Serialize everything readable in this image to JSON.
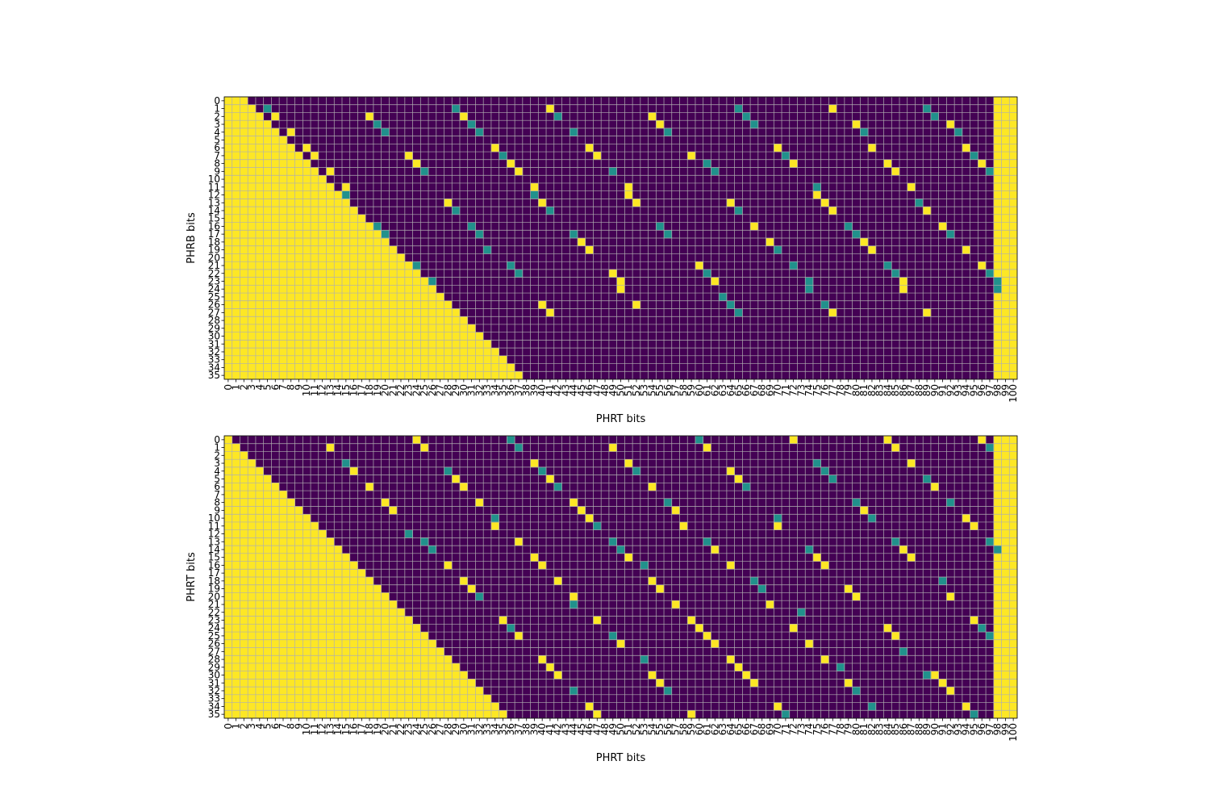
{
  "colors": {
    "high": "#fde725",
    "mid": "#21918c",
    "low": "#440154",
    "grid": "#b0b0b0"
  },
  "chart_data": [
    {
      "type": "heatmap",
      "xlabel": "PHRT bits",
      "ylabel": "PHRB bits",
      "n_cols": 101,
      "n_rows": 36,
      "x_ticks": [
        "0",
        "1",
        "2",
        "3",
        "4",
        "5",
        "6",
        "7",
        "8",
        "9",
        "10",
        "11",
        "12",
        "13",
        "14",
        "15",
        "16",
        "17",
        "18",
        "19",
        "20",
        "21",
        "22",
        "23",
        "24",
        "25",
        "26",
        "27",
        "28",
        "29",
        "30",
        "31",
        "32",
        "33",
        "34",
        "35",
        "36",
        "37",
        "38",
        "39",
        "40",
        "41",
        "42",
        "43",
        "44",
        "45",
        "46",
        "47",
        "48",
        "49",
        "50",
        "51",
        "52",
        "53",
        "54",
        "55",
        "56",
        "57",
        "58",
        "59",
        "60",
        "61",
        "62",
        "63",
        "64",
        "65",
        "66",
        "67",
        "68",
        "69",
        "70",
        "71",
        "72",
        "73",
        "74",
        "75",
        "76",
        "77",
        "78",
        "79",
        "80",
        "81",
        "82",
        "83",
        "84",
        "85",
        "86",
        "87",
        "88",
        "89",
        "90",
        "91",
        "92",
        "93",
        "94",
        "95",
        "96",
        "97",
        "98",
        "99",
        "100"
      ],
      "y_ticks": [
        "0",
        "1",
        "2",
        "3",
        "4",
        "5",
        "6",
        "7",
        "8",
        "9",
        "10",
        "11",
        "12",
        "13",
        "14",
        "15",
        "16",
        "17",
        "18",
        "19",
        "20",
        "21",
        "22",
        "23",
        "24",
        "25",
        "26",
        "27",
        "28",
        "29",
        "30",
        "31",
        "32",
        "33",
        "34",
        "35"
      ],
      "values_legend": {
        "low": 0,
        "mid": 0.5,
        "high": 1
      },
      "triangle_cols_end": [
        3,
        4,
        5,
        6,
        7,
        8,
        9,
        10,
        11,
        12,
        13,
        14,
        15,
        16,
        17,
        18,
        19,
        20,
        21,
        22,
        23,
        24,
        25,
        26,
        27,
        28,
        29,
        30,
        31,
        32,
        33,
        34,
        35,
        36,
        37,
        38
      ],
      "full_high_cols": [
        98,
        99,
        100
      ],
      "high_cells": [
        [
          1,
          41
        ],
        [
          1,
          77
        ],
        [
          2,
          6
        ],
        [
          2,
          18
        ],
        [
          2,
          30
        ],
        [
          2,
          54
        ],
        [
          3,
          55
        ],
        [
          3,
          80
        ],
        [
          3,
          92
        ],
        [
          4,
          8
        ],
        [
          6,
          10
        ],
        [
          6,
          34
        ],
        [
          6,
          46
        ],
        [
          6,
          70
        ],
        [
          6,
          82
        ],
        [
          6,
          94
        ],
        [
          7,
          11
        ],
        [
          7,
          23
        ],
        [
          7,
          47
        ],
        [
          7,
          59
        ],
        [
          8,
          24
        ],
        [
          8,
          36
        ],
        [
          8,
          72
        ],
        [
          8,
          84
        ],
        [
          8,
          96
        ],
        [
          9,
          13
        ],
        [
          9,
          37
        ],
        [
          9,
          85
        ],
        [
          11,
          15
        ],
        [
          11,
          39
        ],
        [
          11,
          51
        ],
        [
          11,
          87
        ],
        [
          12,
          51
        ],
        [
          12,
          75
        ],
        [
          13,
          28
        ],
        [
          13,
          40
        ],
        [
          13,
          52
        ],
        [
          13,
          64
        ],
        [
          13,
          76
        ],
        [
          14,
          77
        ],
        [
          14,
          89
        ],
        [
          16,
          67
        ],
        [
          16,
          91
        ],
        [
          18,
          45
        ],
        [
          18,
          69
        ],
        [
          18,
          81
        ],
        [
          19,
          46
        ],
        [
          19,
          82
        ],
        [
          19,
          94
        ],
        [
          21,
          60
        ],
        [
          21,
          96
        ],
        [
          22,
          49
        ],
        [
          23,
          50
        ],
        [
          23,
          62
        ],
        [
          23,
          86
        ],
        [
          24,
          50
        ],
        [
          24,
          86
        ],
        [
          26,
          40
        ],
        [
          26,
          52
        ],
        [
          27,
          41
        ],
        [
          27,
          77
        ],
        [
          27,
          89
        ]
      ],
      "mid_cells": [
        [
          1,
          5
        ],
        [
          1,
          29
        ],
        [
          1,
          65
        ],
        [
          1,
          89
        ],
        [
          2,
          42
        ],
        [
          2,
          66
        ],
        [
          2,
          90
        ],
        [
          3,
          19
        ],
        [
          3,
          31
        ],
        [
          3,
          67
        ],
        [
          4,
          20
        ],
        [
          4,
          32
        ],
        [
          4,
          44
        ],
        [
          4,
          56
        ],
        [
          4,
          81
        ],
        [
          4,
          93
        ],
        [
          7,
          35
        ],
        [
          7,
          71
        ],
        [
          7,
          95
        ],
        [
          8,
          61
        ],
        [
          9,
          25
        ],
        [
          9,
          49
        ],
        [
          9,
          62
        ],
        [
          9,
          97
        ],
        [
          11,
          75
        ],
        [
          12,
          15
        ],
        [
          12,
          39
        ],
        [
          13,
          88
        ],
        [
          14,
          29
        ],
        [
          14,
          41
        ],
        [
          14,
          65
        ],
        [
          16,
          19
        ],
        [
          16,
          31
        ],
        [
          16,
          55
        ],
        [
          16,
          79
        ],
        [
          17,
          20
        ],
        [
          17,
          32
        ],
        [
          17,
          44
        ],
        [
          17,
          56
        ],
        [
          17,
          80
        ],
        [
          17,
          92
        ],
        [
          19,
          33
        ],
        [
          19,
          70
        ],
        [
          21,
          24
        ],
        [
          21,
          36
        ],
        [
          21,
          72
        ],
        [
          21,
          84
        ],
        [
          22,
          37
        ],
        [
          22,
          61
        ],
        [
          22,
          85
        ],
        [
          22,
          97
        ],
        [
          23,
          26
        ],
        [
          23,
          74
        ],
        [
          23,
          98
        ],
        [
          24,
          74
        ],
        [
          24,
          98
        ],
        [
          25,
          63
        ],
        [
          26,
          64
        ],
        [
          26,
          76
        ],
        [
          27,
          65
        ]
      ]
    },
    {
      "type": "heatmap",
      "xlabel": "PHRT bits",
      "ylabel": "PHRT bits",
      "n_cols": 101,
      "n_rows": 36,
      "x_ticks": [
        "0",
        "1",
        "2",
        "3",
        "4",
        "5",
        "6",
        "7",
        "8",
        "9",
        "10",
        "11",
        "12",
        "13",
        "14",
        "15",
        "16",
        "17",
        "18",
        "19",
        "20",
        "21",
        "22",
        "23",
        "24",
        "25",
        "26",
        "27",
        "28",
        "29",
        "30",
        "31",
        "32",
        "33",
        "34",
        "35",
        "36",
        "37",
        "38",
        "39",
        "40",
        "41",
        "42",
        "43",
        "44",
        "45",
        "46",
        "47",
        "48",
        "49",
        "50",
        "51",
        "52",
        "53",
        "54",
        "55",
        "56",
        "57",
        "58",
        "59",
        "60",
        "61",
        "62",
        "63",
        "64",
        "65",
        "66",
        "67",
        "68",
        "69",
        "70",
        "71",
        "72",
        "73",
        "74",
        "75",
        "76",
        "77",
        "78",
        "79",
        "80",
        "81",
        "82",
        "83",
        "84",
        "85",
        "86",
        "87",
        "88",
        "89",
        "90",
        "91",
        "92",
        "93",
        "94",
        "95",
        "96",
        "97",
        "98",
        "99",
        "100"
      ],
      "y_ticks": [
        "0",
        "1",
        "2",
        "3",
        "4",
        "5",
        "6",
        "7",
        "8",
        "9",
        "10",
        "11",
        "12",
        "13",
        "14",
        "15",
        "16",
        "17",
        "18",
        "19",
        "20",
        "21",
        "22",
        "23",
        "24",
        "25",
        "26",
        "27",
        "28",
        "29",
        "30",
        "31",
        "32",
        "33",
        "34",
        "35"
      ],
      "values_legend": {
        "low": 0,
        "mid": 0.5,
        "high": 1
      },
      "triangle_cols_end": [
        1,
        2,
        3,
        4,
        5,
        6,
        7,
        8,
        9,
        10,
        11,
        12,
        13,
        14,
        15,
        16,
        17,
        18,
        19,
        20,
        21,
        22,
        23,
        24,
        25,
        26,
        27,
        28,
        29,
        30,
        31,
        32,
        33,
        34,
        35,
        36
      ],
      "full_high_cols": [
        98,
        99,
        100
      ],
      "high_cells": [
        [
          0,
          24
        ],
        [
          0,
          72
        ],
        [
          0,
          84
        ],
        [
          0,
          96
        ],
        [
          1,
          13
        ],
        [
          1,
          25
        ],
        [
          1,
          49
        ],
        [
          1,
          61
        ],
        [
          1,
          85
        ],
        [
          3,
          39
        ],
        [
          3,
          51
        ],
        [
          3,
          87
        ],
        [
          4,
          16
        ],
        [
          4,
          64
        ],
        [
          5,
          29
        ],
        [
          5,
          41
        ],
        [
          5,
          65
        ],
        [
          6,
          18
        ],
        [
          6,
          30
        ],
        [
          6,
          54
        ],
        [
          6,
          90
        ],
        [
          8,
          20
        ],
        [
          8,
          32
        ],
        [
          8,
          44
        ],
        [
          9,
          21
        ],
        [
          9,
          45
        ],
        [
          9,
          57
        ],
        [
          9,
          81
        ],
        [
          10,
          46
        ],
        [
          10,
          94
        ],
        [
          11,
          34
        ],
        [
          11,
          58
        ],
        [
          11,
          70
        ],
        [
          11,
          95
        ],
        [
          13,
          37
        ],
        [
          14,
          62
        ],
        [
          14,
          86
        ],
        [
          15,
          39
        ],
        [
          15,
          51
        ],
        [
          15,
          75
        ],
        [
          15,
          87
        ],
        [
          16,
          28
        ],
        [
          16,
          40
        ],
        [
          16,
          64
        ],
        [
          16,
          76
        ],
        [
          18,
          30
        ],
        [
          18,
          42
        ],
        [
          18,
          54
        ],
        [
          19,
          31
        ],
        [
          19,
          55
        ],
        [
          19,
          79
        ],
        [
          20,
          44
        ],
        [
          20,
          80
        ],
        [
          20,
          92
        ],
        [
          21,
          57
        ],
        [
          21,
          69
        ],
        [
          23,
          35
        ],
        [
          23,
          47
        ],
        [
          23,
          59
        ],
        [
          23,
          95
        ],
        [
          24,
          60
        ],
        [
          24,
          72
        ],
        [
          24,
          84
        ],
        [
          25,
          37
        ],
        [
          25,
          61
        ],
        [
          25,
          85
        ],
        [
          26,
          50
        ],
        [
          26,
          62
        ],
        [
          26,
          74
        ],
        [
          26,
          98
        ],
        [
          28,
          40
        ],
        [
          28,
          64
        ],
        [
          28,
          76
        ],
        [
          29,
          41
        ],
        [
          29,
          65
        ],
        [
          30,
          42
        ],
        [
          30,
          54
        ],
        [
          30,
          66
        ],
        [
          30,
          90
        ],
        [
          31,
          55
        ],
        [
          31,
          67
        ],
        [
          31,
          79
        ],
        [
          31,
          91
        ],
        [
          32,
          92
        ],
        [
          34,
          46
        ],
        [
          34,
          70
        ],
        [
          34,
          94
        ],
        [
          35,
          47
        ],
        [
          35,
          59
        ]
      ],
      "mid_cells": [
        [
          0,
          36
        ],
        [
          0,
          60
        ],
        [
          1,
          37
        ],
        [
          1,
          97
        ],
        [
          3,
          15
        ],
        [
          3,
          75
        ],
        [
          4,
          28
        ],
        [
          4,
          40
        ],
        [
          4,
          52
        ],
        [
          4,
          76
        ],
        [
          5,
          77
        ],
        [
          5,
          89
        ],
        [
          6,
          42
        ],
        [
          6,
          66
        ],
        [
          8,
          56
        ],
        [
          8,
          80
        ],
        [
          8,
          92
        ],
        [
          10,
          34
        ],
        [
          10,
          70
        ],
        [
          10,
          82
        ],
        [
          11,
          47
        ],
        [
          12,
          23
        ],
        [
          13,
          25
        ],
        [
          13,
          49
        ],
        [
          13,
          61
        ],
        [
          13,
          85
        ],
        [
          13,
          97
        ],
        [
          14,
          26
        ],
        [
          14,
          50
        ],
        [
          14,
          74
        ],
        [
          14,
          98
        ],
        [
          16,
          53
        ],
        [
          18,
          67
        ],
        [
          18,
          91
        ],
        [
          19,
          68
        ],
        [
          20,
          32
        ],
        [
          21,
          44
        ],
        [
          22,
          73
        ],
        [
          24,
          36
        ],
        [
          24,
          96
        ],
        [
          25,
          49
        ],
        [
          25,
          97
        ],
        [
          27,
          86
        ],
        [
          28,
          53
        ],
        [
          29,
          78
        ],
        [
          30,
          89
        ],
        [
          32,
          44
        ],
        [
          32,
          56
        ],
        [
          32,
          80
        ],
        [
          34,
          82
        ],
        [
          35,
          71
        ],
        [
          35,
          95
        ]
      ]
    }
  ]
}
